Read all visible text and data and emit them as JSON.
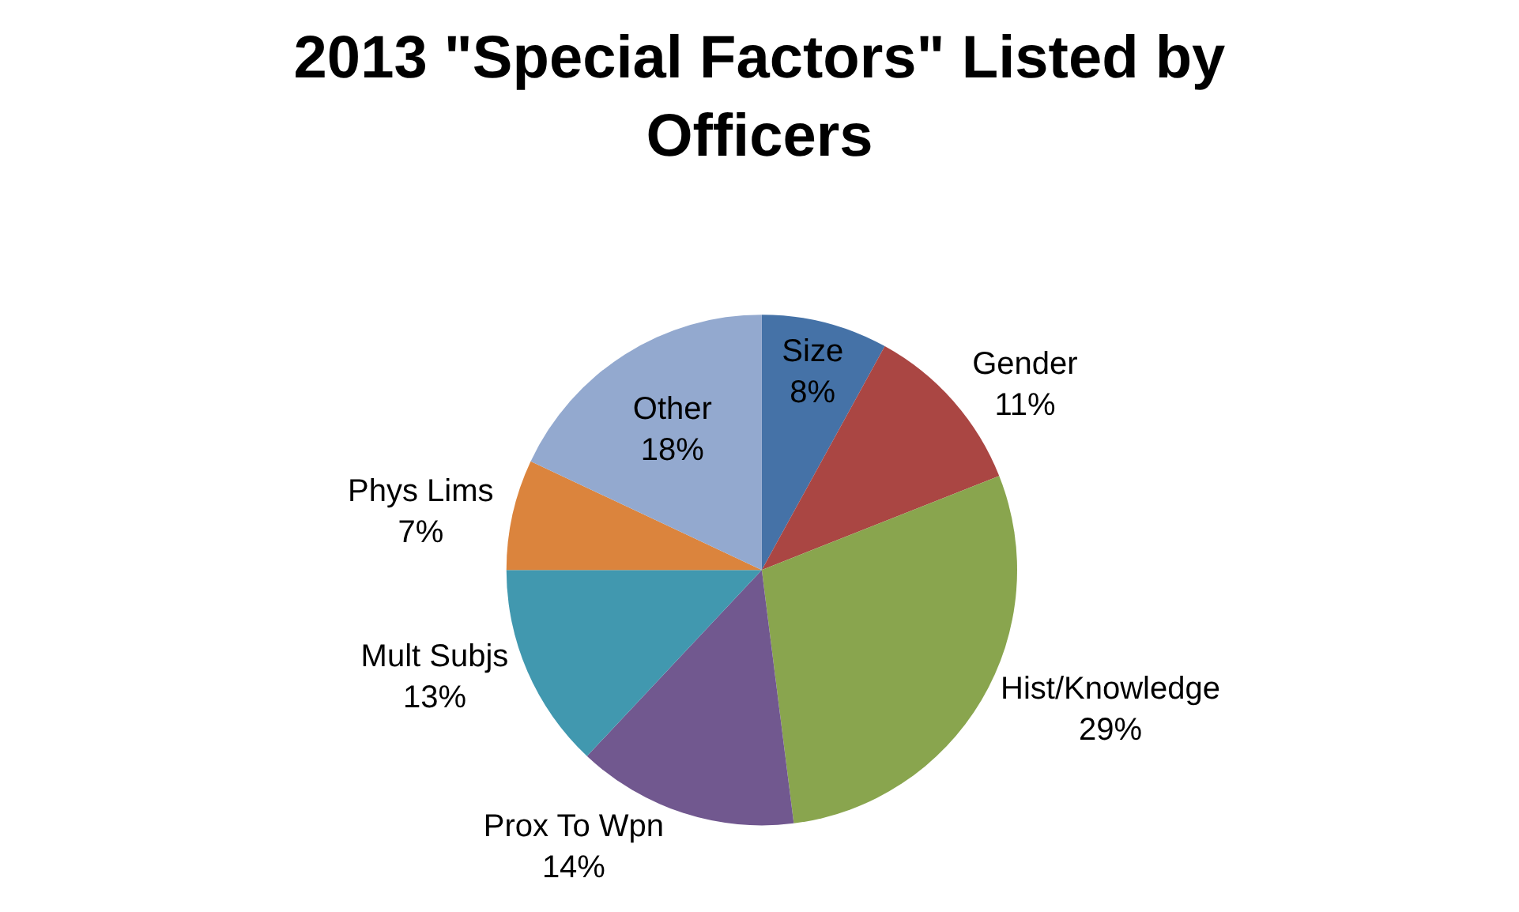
{
  "chart_data": {
    "type": "pie",
    "title": "2013 \"Special Factors\" Listed by Officers",
    "categories": [
      "Size",
      "Gender",
      "Hist/Knowledge",
      "Prox To Wpn",
      "Mult Subjs",
      "Phys Lims",
      "Other"
    ],
    "values": [
      8,
      11,
      29,
      14,
      13,
      7,
      18
    ],
    "value_labels": [
      "8%",
      "11%",
      "29%",
      "14%",
      "13%",
      "7%",
      "18%"
    ],
    "colors": [
      "#4572a7",
      "#aa4643",
      "#89a54e",
      "#71588f",
      "#4198af",
      "#db843d",
      "#93a9cf"
    ],
    "legend": false
  }
}
